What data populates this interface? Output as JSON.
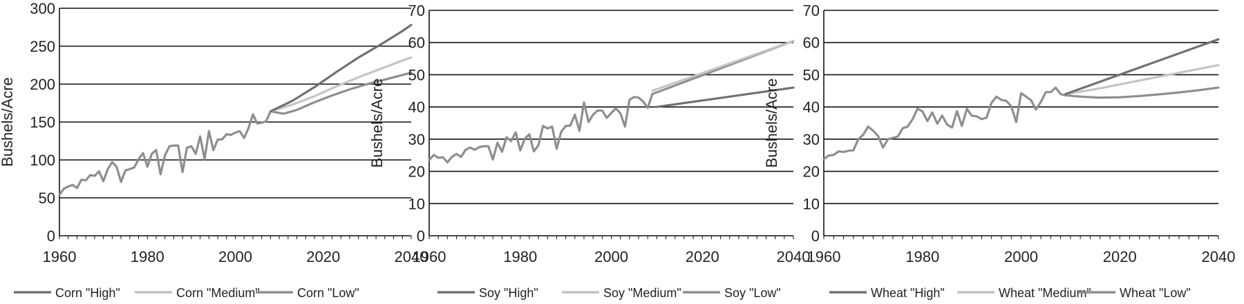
{
  "chart_data": [
    {
      "type": "line",
      "ylabel": "Bushels/Acre",
      "xlim": [
        1960,
        2040
      ],
      "ylim": [
        0,
        300
      ],
      "x_ticks": [
        1960,
        1980,
        2000,
        2020,
        2040
      ],
      "y_ticks": [
        0,
        50,
        100,
        150,
        200,
        250,
        300
      ],
      "grid": "horizontal",
      "legend_position": "bottom",
      "series": [
        {
          "name": "Corn \"High\"",
          "color": "#707070",
          "x": [
            2008,
            2013,
            2018,
            2023,
            2028,
            2033,
            2038,
            2040
          ],
          "values": [
            164,
            178,
            196,
            216,
            235,
            252,
            270,
            278
          ]
        },
        {
          "name": "Corn \"Medium\"",
          "color": "#c4c4c4",
          "x": [
            2008,
            2013,
            2018,
            2023,
            2028,
            2033,
            2038,
            2040
          ],
          "values": [
            164,
            173,
            184,
            197,
            209,
            220,
            231,
            235
          ]
        },
        {
          "name": "Corn \"Low\"",
          "color": "#8e8e8e",
          "x": [
            1960,
            1961,
            1962,
            1963,
            1964,
            1965,
            1966,
            1967,
            1968,
            1969,
            1970,
            1971,
            1972,
            1973,
            1974,
            1975,
            1976,
            1977,
            1978,
            1979,
            1980,
            1981,
            1982,
            1983,
            1984,
            1985,
            1986,
            1987,
            1988,
            1989,
            1990,
            1991,
            1992,
            1993,
            1994,
            1995,
            1996,
            1997,
            1998,
            1999,
            2000,
            2001,
            2002,
            2003,
            2004,
            2005,
            2006,
            2007,
            2008,
            2011,
            2014,
            2018,
            2022,
            2026,
            2030,
            2034,
            2038,
            2040
          ],
          "values": [
            54,
            62,
            65,
            67,
            63,
            74,
            73,
            80,
            79,
            85,
            72,
            88,
            97,
            91,
            71,
            86,
            88,
            90,
            101,
            109,
            91,
            108,
            113,
            81,
            106,
            118,
            119,
            119,
            84,
            116,
            118,
            108,
            131,
            101,
            138,
            113,
            127,
            127,
            134,
            133,
            136,
            138,
            129,
            142,
            160,
            148,
            149,
            151,
            164,
            161,
            166,
            176,
            185,
            193,
            200,
            206,
            212,
            215
          ]
        }
      ],
      "legend": [
        "Corn \"High\"",
        "Corn \"Medium\"",
        "Corn \"Low\""
      ]
    },
    {
      "type": "line",
      "ylabel": "Bushels/Acre",
      "xlim": [
        1960,
        2040
      ],
      "ylim": [
        0,
        70
      ],
      "x_ticks": [
        1960,
        1980,
        2000,
        2020,
        2040
      ],
      "y_ticks": [
        0,
        10,
        20,
        30,
        40,
        50,
        60,
        70
      ],
      "grid": "horizontal",
      "legend_position": "bottom",
      "series": [
        {
          "name": "Soy \"High\"",
          "color": "#707070",
          "x": [
            2010,
            2040
          ],
          "values": [
            40,
            46
          ]
        },
        {
          "name": "Soy \"Medium\"",
          "color": "#c4c4c4",
          "x": [
            2009,
            2040
          ],
          "values": [
            45,
            60.5
          ]
        },
        {
          "name": "Soy \"Low\"",
          "color": "#8e8e8e",
          "x": [
            1960,
            1961,
            1962,
            1963,
            1964,
            1965,
            1966,
            1967,
            1968,
            1969,
            1970,
            1971,
            1972,
            1973,
            1974,
            1975,
            1976,
            1977,
            1978,
            1979,
            1980,
            1981,
            1982,
            1983,
            1984,
            1985,
            1986,
            1987,
            1988,
            1989,
            1990,
            1991,
            1992,
            1993,
            1994,
            1995,
            1996,
            1997,
            1998,
            1999,
            2000,
            2001,
            2002,
            2003,
            2004,
            2005,
            2006,
            2007,
            2008,
            2009,
            2040
          ],
          "values": [
            23.5,
            25.1,
            24.2,
            24.4,
            22.8,
            24.5,
            25.4,
            24.5,
            26.7,
            27.4,
            26.7,
            27.5,
            27.8,
            27.8,
            23.7,
            28.9,
            26.1,
            30.6,
            29.4,
            32.1,
            26.5,
            30.1,
            31.5,
            26.2,
            28.1,
            34.1,
            33.3,
            33.9,
            27.0,
            32.3,
            34.1,
            34.2,
            37.6,
            32.6,
            41.4,
            35.3,
            37.6,
            38.9,
            38.9,
            36.6,
            38.1,
            39.6,
            38.0,
            33.9,
            42.2,
            43.1,
            42.9,
            41.7,
            39.7,
            44.0,
            60.5
          ]
        }
      ],
      "legend": [
        "Soy \"High\"",
        "Soy \"Medium\"",
        "Soy \"Low\""
      ]
    },
    {
      "type": "line",
      "ylabel": "Bushels/Acre",
      "xlim": [
        1960,
        2040
      ],
      "ylim": [
        0,
        70
      ],
      "x_ticks": [
        1960,
        1980,
        2000,
        2020,
        2040
      ],
      "y_ticks": [
        0,
        10,
        20,
        30,
        40,
        50,
        60,
        70
      ],
      "grid": "horizontal",
      "legend_position": "bottom",
      "series": [
        {
          "name": "Wheat \"High\"",
          "color": "#707070",
          "x": [
            2009,
            2040
          ],
          "values": [
            44,
            61
          ]
        },
        {
          "name": "Wheat \"Medium\"",
          "color": "#c4c4c4",
          "x": [
            2009,
            2015,
            2020,
            2025,
            2030,
            2035,
            2040
          ],
          "values": [
            44,
            45.5,
            47,
            48.5,
            50,
            51.5,
            53
          ]
        },
        {
          "name": "Wheat \"Low\"",
          "color": "#8e8e8e",
          "x": [
            1960,
            1961,
            1962,
            1963,
            1964,
            1965,
            1966,
            1967,
            1968,
            1969,
            1970,
            1971,
            1972,
            1973,
            1974,
            1975,
            1976,
            1977,
            1978,
            1979,
            1980,
            1981,
            1982,
            1983,
            1984,
            1985,
            1986,
            1987,
            1988,
            1989,
            1990,
            1991,
            1992,
            1993,
            1994,
            1995,
            1996,
            1997,
            1998,
            1999,
            2000,
            2001,
            2002,
            2003,
            2004,
            2005,
            2006,
            2007,
            2008,
            2009,
            2012,
            2016,
            2020,
            2024,
            2028,
            2032,
            2036,
            2040
          ],
          "values": [
            23.8,
            24.9,
            25.1,
            26.2,
            26.0,
            26.4,
            26.5,
            30.0,
            31.4,
            33.9,
            32.6,
            31.0,
            27.4,
            30.0,
            30.4,
            30.8,
            33.4,
            33.9,
            36.2,
            39.5,
            38.6,
            35.6,
            38.3,
            34.8,
            37.3,
            34.5,
            33.6,
            38.7,
            34.1,
            39.4,
            37.3,
            37.1,
            36.2,
            36.7,
            41.3,
            43.2,
            42.2,
            41.9,
            40.2,
            35.3,
            44.3,
            43.2,
            42.1,
            39.2,
            41.5,
            44.6,
            44.6,
            46.0,
            44.0,
            43.6,
            43.2,
            42.9,
            43.0,
            43.4,
            43.9,
            44.5,
            45.2,
            46.0
          ]
        }
      ],
      "legend": [
        "Wheat \"High\"",
        "Wheat \"Medium\"",
        "Wheat \"Low\""
      ]
    }
  ]
}
